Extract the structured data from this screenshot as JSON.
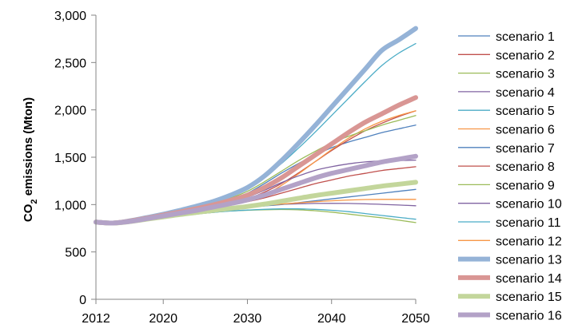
{
  "chart_data": {
    "type": "line",
    "title": "",
    "xlabel": "",
    "ylabel": {
      "main": "CO",
      "sub": "2",
      "rest": " emissions (Mton)"
    },
    "xlim": [
      2012,
      2050
    ],
    "ylim": [
      0,
      3000
    ],
    "x_ticks": [
      2012,
      2020,
      2030,
      2040,
      2050
    ],
    "y_ticks": [
      0,
      500,
      1000,
      1500,
      2000,
      2500,
      3000
    ],
    "y_tick_labels": [
      "0",
      "500",
      "1,000",
      "1,500",
      "2,000",
      "2,500",
      "3,000"
    ],
    "grid": false,
    "legend_position": "right",
    "x": [
      2012,
      2014,
      2016,
      2018,
      2020,
      2022,
      2024,
      2026,
      2028,
      2030,
      2032,
      2034,
      2036,
      2038,
      2040,
      2042,
      2044,
      2046,
      2048,
      2050
    ],
    "series": [
      {
        "name": "scenario 1",
        "color": "#4f81bd",
        "bold": false,
        "values": [
          815,
          805,
          825,
          855,
          890,
          925,
          965,
          1010,
          1060,
          1120,
          1220,
          1330,
          1430,
          1520,
          1600,
          1660,
          1710,
          1760,
          1800,
          1840
        ]
      },
      {
        "name": "scenario 2",
        "color": "#c0504d",
        "bold": false,
        "values": [
          815,
          805,
          822,
          848,
          878,
          905,
          935,
          970,
          1010,
          1060,
          1130,
          1220,
          1330,
          1450,
          1570,
          1680,
          1780,
          1860,
          1930,
          1990
        ]
      },
      {
        "name": "scenario 3",
        "color": "#9bbb59",
        "bold": false,
        "values": [
          815,
          805,
          818,
          838,
          860,
          880,
          900,
          918,
          932,
          940,
          945,
          948,
          945,
          935,
          920,
          900,
          880,
          860,
          835,
          810
        ]
      },
      {
        "name": "scenario 4",
        "color": "#8064a2",
        "bold": false,
        "values": [
          815,
          805,
          820,
          845,
          870,
          895,
          918,
          940,
          962,
          980,
          993,
          1002,
          1008,
          1012,
          1013,
          1012,
          1008,
          1002,
          995,
          988
        ]
      },
      {
        "name": "scenario 5",
        "color": "#4bacc6",
        "bold": false,
        "values": [
          815,
          805,
          818,
          838,
          860,
          880,
          900,
          918,
          932,
          942,
          950,
          955,
          955,
          950,
          940,
          925,
          905,
          885,
          865,
          845
        ]
      },
      {
        "name": "scenario 6",
        "color": "#f79646",
        "bold": false,
        "values": [
          815,
          805,
          822,
          850,
          880,
          910,
          940,
          970,
          1000,
          1040,
          1100,
          1200,
          1320,
          1450,
          1580,
          1700,
          1800,
          1880,
          1940,
          1990
        ]
      },
      {
        "name": "scenario 7",
        "color": "#4f81bd",
        "bold": false,
        "values": [
          815,
          805,
          820,
          845,
          870,
          893,
          915,
          935,
          955,
          970,
          985,
          1000,
          1020,
          1040,
          1060,
          1080,
          1100,
          1120,
          1140,
          1160
        ]
      },
      {
        "name": "scenario 8",
        "color": "#c0504d",
        "bold": false,
        "values": [
          815,
          805,
          822,
          850,
          880,
          910,
          940,
          970,
          1000,
          1030,
          1070,
          1120,
          1170,
          1220,
          1260,
          1300,
          1330,
          1360,
          1380,
          1400
        ]
      },
      {
        "name": "scenario 9",
        "color": "#9bbb59",
        "bold": false,
        "values": [
          815,
          805,
          825,
          858,
          893,
          930,
          970,
          1015,
          1070,
          1140,
          1240,
          1350,
          1460,
          1560,
          1650,
          1720,
          1780,
          1840,
          1890,
          1940
        ]
      },
      {
        "name": "scenario 10",
        "color": "#8064a2",
        "bold": false,
        "values": [
          815,
          805,
          822,
          850,
          880,
          910,
          945,
          985,
          1030,
          1080,
          1150,
          1230,
          1300,
          1360,
          1400,
          1430,
          1450,
          1460,
          1465,
          1470
        ]
      },
      {
        "name": "scenario 11",
        "color": "#4bacc6",
        "bold": false,
        "values": [
          815,
          805,
          825,
          858,
          895,
          935,
          980,
          1030,
          1090,
          1170,
          1290,
          1430,
          1590,
          1760,
          1940,
          2120,
          2300,
          2470,
          2600,
          2700
        ]
      },
      {
        "name": "scenario 12",
        "color": "#f79646",
        "bold": false,
        "values": [
          815,
          805,
          820,
          845,
          870,
          893,
          915,
          937,
          958,
          975,
          990,
          1005,
          1018,
          1030,
          1040,
          1048,
          1053,
          1055,
          1055,
          1055
        ]
      },
      {
        "name": "scenario 13",
        "color": "#95b3d7",
        "bold": true,
        "values": [
          815,
          805,
          828,
          862,
          898,
          940,
          985,
          1035,
          1100,
          1180,
          1300,
          1460,
          1640,
          1830,
          2030,
          2230,
          2430,
          2630,
          2740,
          2860
        ]
      },
      {
        "name": "scenario 14",
        "color": "#d99694",
        "bold": true,
        "values": [
          815,
          805,
          825,
          855,
          888,
          922,
          958,
          998,
          1045,
          1100,
          1180,
          1280,
          1400,
          1520,
          1640,
          1760,
          1870,
          1960,
          2050,
          2130
        ]
      },
      {
        "name": "scenario 15",
        "color": "#c3d69b",
        "bold": true,
        "values": [
          815,
          805,
          820,
          845,
          870,
          895,
          918,
          940,
          960,
          980,
          1005,
          1035,
          1065,
          1095,
          1120,
          1145,
          1170,
          1195,
          1215,
          1235
        ]
      },
      {
        "name": "scenario 16",
        "color": "#b3a2c7",
        "bold": true,
        "values": [
          815,
          805,
          822,
          850,
          880,
          910,
          940,
          975,
          1010,
          1050,
          1100,
          1160,
          1220,
          1280,
          1330,
          1370,
          1410,
          1450,
          1480,
          1510
        ]
      }
    ]
  }
}
